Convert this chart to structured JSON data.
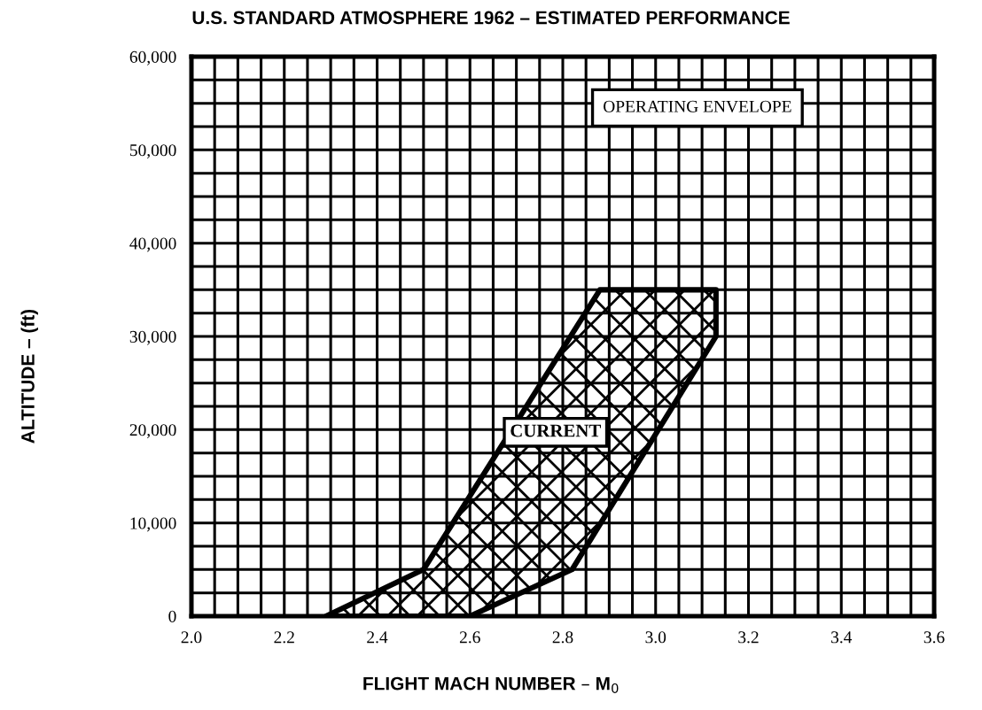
{
  "chart_data": {
    "type": "area",
    "title": "U.S. STANDARD ATMOSPHERE 1962 – ESTIMATED PERFORMANCE",
    "xlabel": "FLIGHT MACH NUMBER – M$_{0}$",
    "ylabel": "ALTITUDE – (ft)",
    "annotations": [
      "OPERATING ENVELOPE"
    ],
    "series": [
      {
        "name": "CURRENT",
        "color": "#000000",
        "x": [
          2.29,
          2.5,
          2.88,
          3.13,
          3.13,
          2.82,
          2.6
        ],
        "values": [
          0,
          5000,
          35000,
          35000,
          30000,
          5000,
          0
        ]
      }
    ],
    "xlim": [
      2.0,
      3.6
    ],
    "ylim": [
      0,
      60000
    ],
    "xticks": [
      {
        "value": 2,
        "label": "2.0"
      },
      {
        "value": 2.05,
        "label": null
      },
      {
        "value": 2.1,
        "label": null
      },
      {
        "value": 2.15,
        "label": null
      },
      2.2,
      {
        "value": 2.25,
        "label": null
      },
      {
        "value": 2.3,
        "label": null
      },
      {
        "value": 2.35,
        "label": null
      },
      2.4,
      {
        "value": 2.45,
        "label": null
      },
      {
        "value": 2.5,
        "label": null
      },
      {
        "value": 2.55,
        "label": null
      },
      2.6,
      {
        "value": 2.65,
        "label": null
      },
      {
        "value": 2.7,
        "label": null
      },
      {
        "value": 2.75,
        "label": null
      },
      2.8,
      {
        "value": 2.85,
        "label": null
      },
      {
        "value": 2.9,
        "label": null
      },
      {
        "value": 2.95,
        "label": null
      },
      {
        "value": 3,
        "label": "3.0"
      },
      {
        "value": 3.05,
        "label": null
      },
      {
        "value": 3.1,
        "label": null
      },
      {
        "value": 3.15,
        "label": null
      },
      3.2,
      {
        "value": 3.25,
        "label": null
      },
      {
        "value": 3.3,
        "label": null
      },
      {
        "value": 3.35,
        "label": null
      },
      3.4,
      {
        "value": 3.45,
        "label": null
      },
      {
        "value": 3.5,
        "label": null
      },
      {
        "value": 3.55,
        "label": null
      },
      3.6
    ],
    "yticks": [
      0,
      {
        "value": 2500,
        "label": null
      },
      {
        "value": 5000,
        "label": null
      },
      {
        "value": 7500,
        "label": null
      },
      {
        "value": 10000,
        "label": "10,000"
      },
      {
        "value": 12500,
        "label": null
      },
      {
        "value": 15000,
        "label": null
      },
      {
        "value": 17500,
        "label": null
      },
      {
        "value": 20000,
        "label": "20,000"
      },
      {
        "value": 22500,
        "label": null
      },
      {
        "value": 25000,
        "label": null
      },
      {
        "value": 27500,
        "label": null
      },
      {
        "value": 30000,
        "label": "30,000"
      },
      {
        "value": 32500,
        "label": null
      },
      {
        "value": 35000,
        "label": null
      },
      {
        "value": 37500,
        "label": null
      },
      {
        "value": 40000,
        "label": "40,000"
      },
      {
        "value": 42500,
        "label": null
      },
      {
        "value": 45000,
        "label": null
      },
      {
        "value": 47500,
        "label": null
      },
      {
        "value": 50000,
        "label": "50,000"
      },
      {
        "value": 52500,
        "label": null
      },
      {
        "value": 55000,
        "label": null
      },
      {
        "value": 57500,
        "label": null
      },
      {
        "value": 60000,
        "label": "60,000"
      }
    ],
    "grid": true,
    "legend": false
  }
}
